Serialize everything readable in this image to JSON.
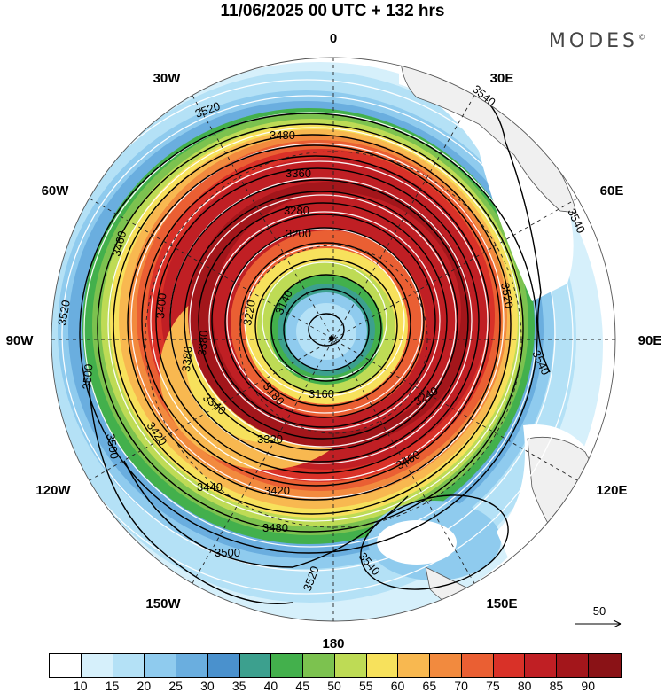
{
  "title": "11/06/2025  00 UTC  + 132 hrs",
  "brand": {
    "text": "MODES",
    "mark": "©"
  },
  "longitude_labels": [
    "0",
    "30E",
    "60E",
    "90E",
    "120E",
    "150E",
    "180",
    "150W",
    "120W",
    "90W",
    "60W",
    "30W"
  ],
  "contour_labels": [
    "3540",
    "3540",
    "3540",
    "3520",
    "3520",
    "3500",
    "3500",
    "3480",
    "3460",
    "3440",
    "3420",
    "3400",
    "3380",
    "3360",
    "3340",
    "3320",
    "3280",
    "3240",
    "3220",
    "3200",
    "3180",
    "3160",
    "3140",
    "3480",
    "3520",
    "3420",
    "3380",
    "3520",
    "3500",
    "3540",
    "3460"
  ],
  "reference_vector": {
    "label": "50"
  },
  "colorbar": {
    "levels": [
      "10",
      "15",
      "20",
      "25",
      "30",
      "35",
      "40",
      "45",
      "50",
      "55",
      "60",
      "65",
      "70",
      "75",
      "80",
      "85",
      "90"
    ],
    "colors": [
      "#ffffff",
      "#d6f0fb",
      "#b4e1f6",
      "#8fcbee",
      "#6aaedf",
      "#4a91cd",
      "#3ca08e",
      "#43b04c",
      "#7cc24f",
      "#bedb55",
      "#f7e15c",
      "#f8b850",
      "#f28a3e",
      "#ea5f33",
      "#d93128",
      "#c01f24",
      "#a3161b",
      "#8a1216"
    ]
  },
  "colors": {
    "land": "#f0f0f0",
    "contour": "#000000",
    "streamline": "#ffffff"
  }
}
